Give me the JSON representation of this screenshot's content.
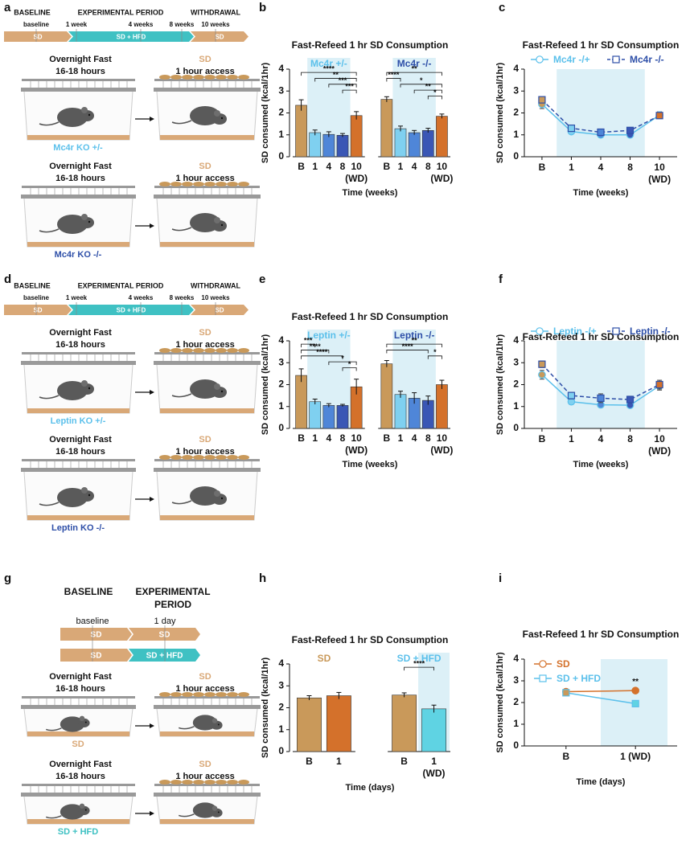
{
  "panel_labels": [
    "a",
    "b",
    "c",
    "d",
    "e",
    "f",
    "g",
    "h",
    "i"
  ],
  "diagrams": [
    {
      "timeline": {
        "phases": [
          [
            "BASELINE"
          ],
          [
            "EXPERIMENTAL PERIOD"
          ],
          [
            "WITHDRAWAL"
          ]
        ],
        "marks": [
          "baseline",
          "1 week",
          "4 weeks",
          "8 weeks",
          "10 weeks"
        ],
        "rows": [
          [
            {
              "label": "SD",
              "color": "#d9a877"
            },
            {
              "label": "SD + HFD",
              "color": "#3fc1c3"
            },
            {
              "label": "SD",
              "color": "#d9a877"
            }
          ]
        ]
      },
      "cages": [
        {
          "fast": [
            "Overnight Fast",
            "16-18 hours"
          ],
          "food": "SD",
          "access": "1 hour access",
          "mouse_label": "Mc4r KO +/-",
          "mouse_color": "#5bc0eb"
        },
        {
          "fast": [
            "Overnight Fast",
            "16-18 hours"
          ],
          "food": "SD",
          "access": "1 hour access",
          "mouse_label": "Mc4r KO -/-",
          "mouse_color": "#2e4fa8"
        }
      ]
    },
    {
      "timeline": {
        "phases": [
          [
            "BASELINE"
          ],
          [
            "EXPERIMENTAL PERIOD"
          ],
          [
            "WITHDRAWAL"
          ]
        ],
        "marks": [
          "baseline",
          "1 week",
          "4 weeks",
          "8 weeks",
          "10 weeks"
        ],
        "rows": [
          [
            {
              "label": "SD",
              "color": "#d9a877"
            },
            {
              "label": "SD + HFD",
              "color": "#3fc1c3"
            },
            {
              "label": "SD",
              "color": "#d9a877"
            }
          ]
        ]
      },
      "cages": [
        {
          "fast": [
            "Overnight Fast",
            "16-18 hours"
          ],
          "food": "SD",
          "access": "1 hour access",
          "mouse_label": "Leptin KO +/-",
          "mouse_color": "#5bc0eb"
        },
        {
          "fast": [
            "Overnight Fast",
            "16-18 hours"
          ],
          "food": "SD",
          "access": "1 hour access",
          "mouse_label": "Leptin KO -/-",
          "mouse_color": "#2e4fa8"
        }
      ]
    },
    {
      "timeline": {
        "phases": [
          [
            "BASELINE"
          ],
          [
            "EXPERIMENTAL",
            "PERIOD"
          ]
        ],
        "marks": [
          "baseline",
          "1 day"
        ],
        "rows": [
          [
            {
              "label": "SD",
              "color": "#d9a877"
            },
            {
              "label": "SD",
              "color": "#d9a877"
            }
          ],
          [
            {
              "label": "SD",
              "color": "#d9a877"
            },
            {
              "label": "SD + HFD",
              "color": "#3fc1c3"
            }
          ]
        ]
      },
      "cages": [
        {
          "fast": [
            "Overnight Fast",
            "16-18 hours"
          ],
          "food": "SD",
          "access": "1 hour access",
          "mouse_label": "SD",
          "mouse_color": "#d9a877"
        },
        {
          "fast": [
            "Overnight Fast",
            "16-18 hours"
          ],
          "food": "SD",
          "access": "1 hour access",
          "mouse_label": "SD + HFD",
          "mouse_color": "#3fc1c3"
        }
      ]
    }
  ],
  "chart_data": [
    {
      "type": "bar",
      "title": "Fast-Refeed 1 hr SD Consumption",
      "y_label": "SD consumed (kcal/1hr)",
      "x_label": "Time (weeks)",
      "categories": [
        "B",
        "1",
        "4",
        "8",
        "10"
      ],
      "ylim": [
        0,
        4
      ],
      "yticks": [
        0,
        1,
        2,
        3,
        4
      ],
      "groups": [
        {
          "name": "Mc4r +/-",
          "color": "#5bc0eb",
          "bar_colors": [
            "#c9995a",
            "#7fd0f0",
            "#4f86d8",
            "#3a57b5",
            "#d4712b"
          ],
          "values": [
            2.35,
            1.1,
            1.02,
            0.98,
            1.88
          ],
          "errors": [
            0.25,
            0.12,
            0.12,
            0.08,
            0.18
          ],
          "shade": [
            1,
            3
          ],
          "wd_label": "(WD)",
          "brackets": [
            {
              "from": 0,
              "to": 4,
              "label": "****"
            },
            {
              "from": 1,
              "to": 4,
              "label": "**"
            },
            {
              "from": 2,
              "to": 4,
              "label": "***"
            },
            {
              "from": 3,
              "to": 4,
              "label": "***"
            }
          ]
        },
        {
          "name": "Mc4r -/-",
          "color": "#2e4fa8",
          "bar_colors": [
            "#c9995a",
            "#7fd0f0",
            "#4f86d8",
            "#3a57b5",
            "#d4712b"
          ],
          "values": [
            2.62,
            1.28,
            1.1,
            1.2,
            1.85
          ],
          "errors": [
            0.12,
            0.12,
            0.1,
            0.1,
            0.1
          ],
          "shade": [
            1,
            3
          ],
          "wd_label": "(WD)",
          "brackets": [
            {
              "from": 0,
              "to": 4,
              "label": "**"
            },
            {
              "from": 0,
              "to": 1,
              "label": "****"
            },
            {
              "from": 1,
              "to": 4,
              "label": "*"
            },
            {
              "from": 2,
              "to": 4,
              "label": "**"
            },
            {
              "from": 3,
              "to": 4,
              "label": "*"
            }
          ]
        }
      ]
    },
    {
      "type": "line",
      "title": "Fast-Refeed 1 hr SD Consumption",
      "y_label": "SD consumed (kcal/1hr)",
      "x_label": "Time (weeks)",
      "categories": [
        "B",
        "1",
        "4",
        "8",
        "10"
      ],
      "wd_label": "(WD)",
      "ylim": [
        0,
        4
      ],
      "yticks": [
        0,
        1,
        2,
        3,
        4
      ],
      "shade": [
        1,
        3
      ],
      "legend": "top",
      "series": [
        {
          "name": "Mc4r -/+",
          "color": "#5bc0eb",
          "marker": "circle",
          "dashed": false,
          "point_colors": [
            "#c9995a",
            "#7fd0f0",
            "#4f86d8",
            "#3a57b5",
            "#d4712b"
          ],
          "values": [
            2.4,
            1.15,
            1.0,
            1.0,
            1.9
          ],
          "errors": [
            0.2,
            0.1,
            0.08,
            0.08,
            0.15
          ]
        },
        {
          "name": "Mc4r -/-",
          "color": "#2e4fa8",
          "marker": "square",
          "dashed": true,
          "point_colors": [
            "#c9995a",
            "#7fd0f0",
            "#4f86d8",
            "#3a57b5",
            "#d4712b"
          ],
          "values": [
            2.6,
            1.3,
            1.12,
            1.2,
            1.88
          ],
          "errors": [
            0.12,
            0.12,
            0.1,
            0.1,
            0.1
          ]
        }
      ]
    },
    {
      "type": "bar",
      "title": "Fast-Refeed 1 hr SD Consumption",
      "y_label": "SD consumed (kcal/1hr)",
      "x_label": "Time (weeks)",
      "categories": [
        "B",
        "1",
        "4",
        "8",
        "10"
      ],
      "ylim": [
        0,
        4
      ],
      "yticks": [
        0,
        1,
        2,
        3,
        4
      ],
      "groups": [
        {
          "name": "Leptin +/-",
          "color": "#5bc0eb",
          "bar_colors": [
            "#c9995a",
            "#7fd0f0",
            "#4f86d8",
            "#3a57b5",
            "#d4712b"
          ],
          "values": [
            2.42,
            1.22,
            1.05,
            1.05,
            1.9
          ],
          "errors": [
            0.3,
            0.12,
            0.08,
            0.05,
            0.35
          ],
          "shade": [
            1,
            3
          ],
          "wd_label": "(WD)",
          "brackets": [
            {
              "from": 0,
              "to": 1,
              "label": "***"
            },
            {
              "from": 0,
              "to": 2,
              "label": "****"
            },
            {
              "from": 0,
              "to": 3,
              "label": "****"
            },
            {
              "from": 2,
              "to": 4,
              "label": "*"
            },
            {
              "from": 3,
              "to": 4,
              "label": "*"
            }
          ]
        },
        {
          "name": "Leptin -/-",
          "color": "#2e4fa8",
          "bar_colors": [
            "#c9995a",
            "#7fd0f0",
            "#4f86d8",
            "#3a57b5",
            "#d4712b"
          ],
          "values": [
            2.95,
            1.55,
            1.38,
            1.28,
            2.0
          ],
          "errors": [
            0.15,
            0.15,
            0.25,
            0.2,
            0.2
          ],
          "shade": [
            1,
            3
          ],
          "wd_label": "(WD)",
          "brackets": [
            {
              "from": 0,
              "to": 4,
              "label": "**"
            },
            {
              "from": 0,
              "to": 3,
              "label": "****"
            },
            {
              "from": 3,
              "to": 4,
              "label": "*"
            }
          ]
        }
      ]
    },
    {
      "type": "line",
      "title": "Fast-Refeed 1 hr SD Consumption",
      "y_label": "SD consumed (kcal/1hr)",
      "x_label": "Time (weeks)",
      "categories": [
        "B",
        "1",
        "4",
        "8",
        "10"
      ],
      "wd_label": "(WD)",
      "ylim": [
        0,
        4
      ],
      "yticks": [
        0,
        1,
        2,
        3,
        4
      ],
      "shade": [
        1,
        3
      ],
      "legend": "top",
      "series": [
        {
          "name": "Leptin -/+",
          "color": "#5bc0eb",
          "marker": "circle",
          "dashed": false,
          "point_colors": [
            "#c9995a",
            "#7fd0f0",
            "#4f86d8",
            "#3a57b5",
            "#d4712b"
          ],
          "values": [
            2.45,
            1.22,
            1.08,
            1.06,
            1.95
          ],
          "errors": [
            0.2,
            0.12,
            0.06,
            0.06,
            0.2
          ]
        },
        {
          "name": "Leptin -/-",
          "color": "#2e4fa8",
          "marker": "square",
          "dashed": true,
          "point_colors": [
            "#c9995a",
            "#7fd0f0",
            "#4f86d8",
            "#3a57b5",
            "#d4712b"
          ],
          "values": [
            2.93,
            1.5,
            1.38,
            1.32,
            2.0
          ],
          "errors": [
            0.15,
            0.15,
            0.2,
            0.15,
            0.2
          ]
        }
      ]
    },
    {
      "type": "bar",
      "title": "Fast-Refeed 1 hr SD Consumption",
      "y_label": "SD consumed (kcal/1hr)",
      "x_label": "Time (days)",
      "categories": [
        "B",
        "1"
      ],
      "ylim": [
        0,
        4
      ],
      "yticks": [
        0,
        1,
        2,
        3,
        4
      ],
      "groups": [
        {
          "name": "SD",
          "color": "#c9995a",
          "bar_colors": [
            "#c9995a",
            "#d4712b"
          ],
          "values": [
            2.45,
            2.55
          ],
          "errors": [
            0.1,
            0.15
          ]
        },
        {
          "name": "SD + HFD",
          "color": "#5bc0eb",
          "bar_colors": [
            "#c9995a",
            "#5fd3e3"
          ],
          "values": [
            2.58,
            1.95
          ],
          "errors": [
            0.1,
            0.17
          ],
          "shade": [
            1,
            1
          ],
          "wd_label": "(WD)",
          "brackets": [
            {
              "from": 0,
              "to": 1,
              "label": "****"
            }
          ]
        }
      ]
    },
    {
      "type": "line",
      "title": "Fast-Refeed 1 hr SD Consumption",
      "y_label": "SD consumed (kcal/1hr)",
      "x_label": "Time (days)",
      "categories": [
        "B",
        "1 (WD)"
      ],
      "ylim": [
        0,
        4
      ],
      "yticks": [
        0,
        1,
        2,
        3,
        4
      ],
      "shade": [
        1,
        1
      ],
      "legend": "upper left",
      "annotations": [
        {
          "label": "**",
          "index": 1
        }
      ],
      "series": [
        {
          "name": "SD",
          "color": "#d4712b",
          "marker": "circle",
          "dashed": false,
          "point_colors": [
            "#c9995a",
            "#d4712b"
          ],
          "values": [
            2.5,
            2.55
          ],
          "errors": [
            0.08,
            0.1
          ]
        },
        {
          "name": "SD + HFD",
          "color": "#5bc0eb",
          "marker": "square",
          "dashed": false,
          "point_colors": [
            "#c9995a",
            "#5fd3e3"
          ],
          "values": [
            2.45,
            1.95
          ],
          "errors": [
            0.08,
            0.12
          ]
        }
      ]
    }
  ]
}
